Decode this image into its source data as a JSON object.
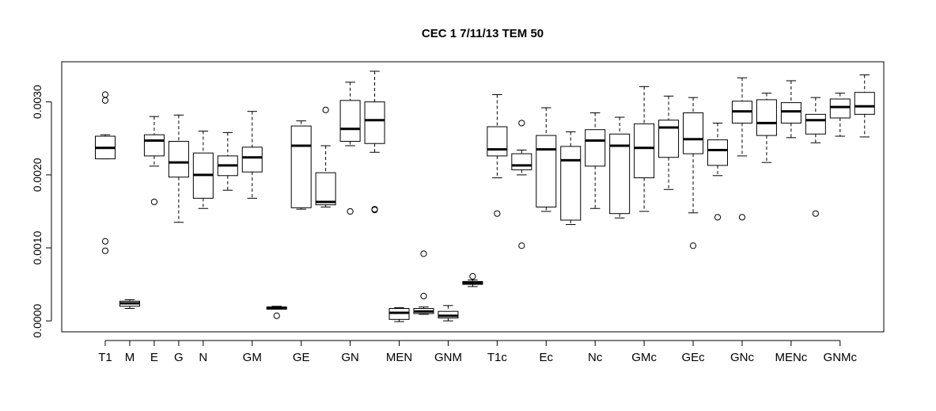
{
  "chart_data": {
    "type": "box",
    "title": "CEC 1 7/11/13 TEM 50",
    "xlabel": "",
    "ylabel": "",
    "ylim": [
      -0.00015,
      0.00355
    ],
    "grid": false,
    "legend": "none",
    "y_ticks": [
      "0.0000",
      "0.0010",
      "0.0020",
      "0.0030"
    ],
    "y_tick_values": [
      0.0,
      0.001,
      0.002,
      0.003
    ],
    "x_tick_labels": [
      "T1",
      "M",
      "E",
      "G",
      "N",
      "GM",
      "GE",
      "GN",
      "MEN",
      "GNM",
      "T1c",
      "Ec",
      "Nc",
      "GMc",
      "GEc",
      "GNc",
      "MENc",
      "GNMc"
    ],
    "x_tick_positions": [
      1,
      2,
      3,
      4,
      5,
      7,
      9,
      11,
      13,
      15,
      17,
      19,
      21,
      23,
      25,
      27,
      29,
      31
    ],
    "boxes": [
      {
        "pos": 1,
        "whislo": 0.00222,
        "q1": 0.00222,
        "med": 0.00237,
        "q3": 0.00253,
        "whishi": 0.00255,
        "fliers": [
          0.0031,
          0.00302,
          0.00109,
          0.00096
        ]
      },
      {
        "pos": 2,
        "whislo": 0.00017,
        "q1": 0.0002,
        "med": 0.00024,
        "q3": 0.00027,
        "whishi": 0.00029,
        "fliers": []
      },
      {
        "pos": 3,
        "whislo": 0.00212,
        "q1": 0.00226,
        "med": 0.00247,
        "q3": 0.00255,
        "whishi": 0.0028,
        "fliers": [
          0.00163
        ]
      },
      {
        "pos": 4,
        "whislo": 0.00135,
        "q1": 0.00197,
        "med": 0.00217,
        "q3": 0.00246,
        "whishi": 0.00282,
        "fliers": []
      },
      {
        "pos": 5,
        "whislo": 0.00154,
        "q1": 0.00168,
        "med": 0.002,
        "q3": 0.0023,
        "whishi": 0.0026,
        "fliers": []
      },
      {
        "pos": 6,
        "whislo": 0.00179,
        "q1": 0.00199,
        "med": 0.00213,
        "q3": 0.00226,
        "whishi": 0.00258,
        "fliers": []
      },
      {
        "pos": 7,
        "whislo": 0.00168,
        "q1": 0.00204,
        "med": 0.00224,
        "q3": 0.00238,
        "whishi": 0.00287,
        "fliers": []
      },
      {
        "pos": 8,
        "whislo": 0.00016,
        "q1": 0.00016,
        "med": 0.00018,
        "q3": 0.00019,
        "whishi": 0.0002,
        "fliers": [
          7e-05
        ]
      },
      {
        "pos": 9,
        "whislo": 0.00153,
        "q1": 0.00155,
        "med": 0.0024,
        "q3": 0.00267,
        "whishi": 0.00274,
        "fliers": []
      },
      {
        "pos": 10,
        "whislo": 0.00156,
        "q1": 0.00159,
        "med": 0.00163,
        "q3": 0.00203,
        "whishi": 0.0024,
        "fliers": [
          0.00289
        ]
      },
      {
        "pos": 11,
        "whislo": 0.0024,
        "q1": 0.00246,
        "med": 0.00263,
        "q3": 0.00302,
        "whishi": 0.00327,
        "fliers": [
          0.0015
        ]
      },
      {
        "pos": 12,
        "whislo": 0.00231,
        "q1": 0.00243,
        "med": 0.00275,
        "q3": 0.003,
        "whishi": 0.00342,
        "fliers": [
          0.00153,
          0.00152
        ]
      },
      {
        "pos": 13,
        "whislo": -1e-05,
        "q1": 2e-05,
        "med": 0.00011,
        "q3": 0.00017,
        "whishi": 0.00018,
        "fliers": []
      },
      {
        "pos": 14,
        "whislo": 9e-05,
        "q1": 0.0001,
        "med": 0.00013,
        "q3": 0.00017,
        "whishi": 0.00019,
        "fliers": [
          0.00092,
          0.00034
        ]
      },
      {
        "pos": 15,
        "whislo": 0.0,
        "q1": 4e-05,
        "med": 7e-05,
        "q3": 0.00013,
        "whishi": 0.00021,
        "fliers": []
      },
      {
        "pos": 16,
        "whislo": 0.00047,
        "q1": 0.0005,
        "med": 0.00052,
        "q3": 0.00054,
        "whishi": 0.00056,
        "fliers": [
          0.00061
        ]
      },
      {
        "pos": 17,
        "whislo": 0.00196,
        "q1": 0.00226,
        "med": 0.00235,
        "q3": 0.00266,
        "whishi": 0.0031,
        "fliers": [
          0.00147
        ]
      },
      {
        "pos": 18,
        "whislo": 0.002,
        "q1": 0.00207,
        "med": 0.00213,
        "q3": 0.00229,
        "whishi": 0.00234,
        "fliers": [
          0.00271,
          0.00103
        ]
      },
      {
        "pos": 19,
        "whislo": 0.0015,
        "q1": 0.00156,
        "med": 0.00235,
        "q3": 0.00254,
        "whishi": 0.00292,
        "fliers": []
      },
      {
        "pos": 20,
        "whislo": 0.00132,
        "q1": 0.00138,
        "med": 0.0022,
        "q3": 0.00239,
        "whishi": 0.00259,
        "fliers": []
      },
      {
        "pos": 21,
        "whislo": 0.00154,
        "q1": 0.00212,
        "med": 0.00247,
        "q3": 0.00262,
        "whishi": 0.00285,
        "fliers": []
      },
      {
        "pos": 22,
        "whislo": 0.00141,
        "q1": 0.00147,
        "med": 0.0024,
        "q3": 0.00256,
        "whishi": 0.00279,
        "fliers": []
      },
      {
        "pos": 23,
        "whislo": 0.0015,
        "q1": 0.00196,
        "med": 0.00237,
        "q3": 0.0027,
        "whishi": 0.00321,
        "fliers": []
      },
      {
        "pos": 24,
        "whislo": 0.0018,
        "q1": 0.00224,
        "med": 0.00265,
        "q3": 0.00275,
        "whishi": 0.00308,
        "fliers": []
      },
      {
        "pos": 25,
        "whislo": 0.00148,
        "q1": 0.00229,
        "med": 0.00249,
        "q3": 0.00285,
        "whishi": 0.00306,
        "fliers": [
          0.00103
        ]
      },
      {
        "pos": 26,
        "whislo": 0.00199,
        "q1": 0.00213,
        "med": 0.00234,
        "q3": 0.00248,
        "whishi": 0.00271,
        "fliers": [
          0.00142
        ]
      },
      {
        "pos": 27,
        "whislo": 0.00226,
        "q1": 0.00271,
        "med": 0.00287,
        "q3": 0.00301,
        "whishi": 0.00333,
        "fliers": [
          0.00142
        ]
      },
      {
        "pos": 28,
        "whislo": 0.00217,
        "q1": 0.00254,
        "med": 0.00271,
        "q3": 0.00303,
        "whishi": 0.00312,
        "fliers": []
      },
      {
        "pos": 29,
        "whislo": 0.00251,
        "q1": 0.00271,
        "med": 0.00287,
        "q3": 0.00299,
        "whishi": 0.00329,
        "fliers": []
      },
      {
        "pos": 30,
        "whislo": 0.00244,
        "q1": 0.00256,
        "med": 0.00275,
        "q3": 0.00283,
        "whishi": 0.00306,
        "fliers": [
          0.00147
        ]
      },
      {
        "pos": 31,
        "whislo": 0.00253,
        "q1": 0.00278,
        "med": 0.00293,
        "q3": 0.00304,
        "whishi": 0.00312,
        "fliers": []
      },
      {
        "pos": 32,
        "whislo": 0.00252,
        "q1": 0.00283,
        "med": 0.00294,
        "q3": 0.00313,
        "whishi": 0.00337,
        "fliers": []
      }
    ]
  }
}
